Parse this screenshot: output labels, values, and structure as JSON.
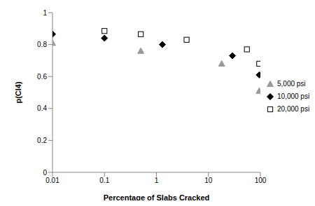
{
  "chart_data": {
    "type": "scatter",
    "x_label": "Percentage of Slabs Cracked",
    "y_label": "p(CI4)",
    "log": "x",
    "grid": false,
    "legend": "right",
    "xlim": [
      0.01,
      100
    ],
    "xticks": [
      0.01,
      0.1,
      1,
      10,
      100
    ],
    "ylim": [
      0,
      1
    ],
    "yticks": [
      0,
      0.2,
      0.4,
      0.6,
      0.8,
      1
    ],
    "series": [
      {
        "name": "5,000 psi",
        "color": "#999999",
        "marker": "triangle",
        "x": [
          0.01,
          0.5,
          18,
          95
        ],
        "values": [
          0.81,
          0.76,
          0.68,
          0.51
        ]
      },
      {
        "name": "10,000 psi",
        "color": "#000000",
        "marker": "diamond",
        "x": [
          0.01,
          0.1,
          1.3,
          29,
          95
        ],
        "values": [
          0.865,
          0.84,
          0.8,
          0.73,
          0.61
        ]
      },
      {
        "name": "20,000 psi",
        "color": "#000000",
        "marker": "open_square",
        "x": [
          0.1,
          0.5,
          3.8,
          55,
          95
        ],
        "values": [
          0.885,
          0.865,
          0.83,
          0.77,
          0.68
        ]
      }
    ]
  }
}
